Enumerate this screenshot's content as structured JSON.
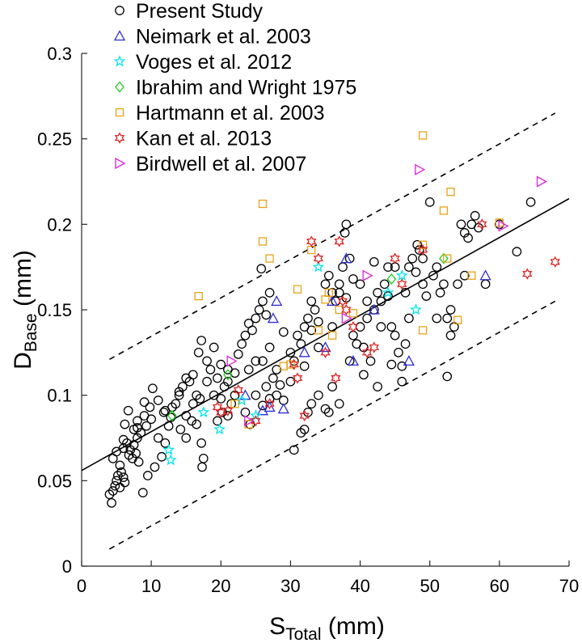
{
  "chart_data": {
    "type": "scatter",
    "xlabel": {
      "main": "S",
      "sub": "Total",
      "unit": " (mm)"
    },
    "ylabel": {
      "main": "D",
      "sub": "Base",
      "unit": " (mm)"
    },
    "xlim": [
      0,
      70
    ],
    "ylim": [
      0,
      0.3
    ],
    "xticks": [
      "0",
      "10",
      "20",
      "30",
      "40",
      "50",
      "60",
      "70"
    ],
    "yticks": [
      "0",
      "0.05",
      "0.1",
      "0.15",
      "0.2",
      "0.25",
      "0.3"
    ],
    "legend_position": "top-left",
    "grid": false,
    "fit_line": {
      "x": [
        0,
        70
      ],
      "y": [
        0.056,
        0.215
      ]
    },
    "bounds_upper": {
      "x": [
        4,
        68
      ],
      "y": [
        0.121,
        0.265
      ]
    },
    "bounds_lower": {
      "x": [
        4,
        68
      ],
      "y": [
        0.01,
        0.155
      ]
    },
    "series": [
      {
        "name": "Present Study",
        "marker": "circle",
        "color": "#000000",
        "points": [
          [
            4,
            0.042
          ],
          [
            4.3,
            0.037
          ],
          [
            4.5,
            0.044
          ],
          [
            4.8,
            0.047
          ],
          [
            5,
            0.05
          ],
          [
            5.2,
            0.053
          ],
          [
            5.5,
            0.046
          ],
          [
            5.7,
            0.055
          ],
          [
            6,
            0.052
          ],
          [
            6.2,
            0.049
          ],
          [
            4.5,
            0.063
          ],
          [
            5,
            0.067
          ],
          [
            5.5,
            0.059
          ],
          [
            6,
            0.069
          ],
          [
            6.5,
            0.072
          ],
          [
            6.8,
            0.065
          ],
          [
            7,
            0.068
          ],
          [
            7.3,
            0.063
          ],
          [
            7.5,
            0.071
          ],
          [
            7.8,
            0.066
          ],
          [
            8,
            0.075
          ],
          [
            8.2,
            0.061
          ],
          [
            6.2,
            0.083
          ],
          [
            6.7,
            0.091
          ],
          [
            7.5,
            0.08
          ],
          [
            8,
            0.085
          ],
          [
            8.5,
            0.078
          ],
          [
            9,
            0.088
          ],
          [
            9.3,
            0.082
          ],
          [
            9.8,
            0.093
          ],
          [
            10.2,
            0.104
          ],
          [
            8.8,
            0.043
          ],
          [
            9.5,
            0.053
          ],
          [
            10.5,
            0.058
          ],
          [
            11,
            0.075
          ],
          [
            11.5,
            0.064
          ],
          [
            12,
            0.072
          ],
          [
            12.5,
            0.082
          ],
          [
            11.8,
            0.09
          ],
          [
            12.8,
            0.087
          ],
          [
            13.5,
            0.095
          ],
          [
            14,
            0.1
          ],
          [
            14.5,
            0.105
          ],
          [
            15,
            0.11
          ],
          [
            15.5,
            0.108
          ],
          [
            16,
            0.095
          ],
          [
            16.5,
            0.1
          ],
          [
            17,
            0.098
          ],
          [
            14.2,
            0.08
          ],
          [
            15,
            0.075
          ],
          [
            15.8,
            0.085
          ],
          [
            16.5,
            0.083
          ],
          [
            17.2,
            0.072
          ],
          [
            17.5,
            0.063
          ],
          [
            17.3,
            0.058
          ],
          [
            16.8,
            0.125
          ],
          [
            17.2,
            0.132
          ],
          [
            18,
            0.12
          ],
          [
            18.5,
            0.115
          ],
          [
            19,
            0.128
          ],
          [
            19.5,
            0.11
          ],
          [
            20,
            0.098
          ],
          [
            20.5,
            0.105
          ],
          [
            21,
            0.115
          ],
          [
            19.5,
            0.085
          ],
          [
            20.2,
            0.09
          ],
          [
            21,
            0.088
          ],
          [
            21.5,
            0.095
          ],
          [
            22,
            0.1
          ],
          [
            22.5,
            0.124
          ],
          [
            23,
            0.13
          ],
          [
            23.5,
            0.135
          ],
          [
            24,
            0.142
          ],
          [
            24.5,
            0.138
          ],
          [
            25,
            0.145
          ],
          [
            25.5,
            0.15
          ],
          [
            26,
            0.155
          ],
          [
            26.5,
            0.147
          ],
          [
            27,
            0.16
          ],
          [
            25.8,
            0.174
          ],
          [
            23.5,
            0.09
          ],
          [
            24.2,
            0.083
          ],
          [
            25,
            0.1
          ],
          [
            26,
            0.094
          ],
          [
            26.5,
            0.105
          ],
          [
            27,
            0.098
          ],
          [
            27.5,
            0.11
          ],
          [
            28,
            0.1
          ],
          [
            28.5,
            0.106
          ],
          [
            29,
            0.097
          ],
          [
            30,
            0.125
          ],
          [
            30.5,
            0.12
          ],
          [
            31,
            0.135
          ],
          [
            31.5,
            0.13
          ],
          [
            32,
            0.14
          ],
          [
            32.5,
            0.145
          ],
          [
            33,
            0.138
          ],
          [
            33.5,
            0.15
          ],
          [
            34,
            0.143
          ],
          [
            30.5,
            0.068
          ],
          [
            31.5,
            0.078
          ],
          [
            32,
            0.08
          ],
          [
            32.5,
            0.09
          ],
          [
            33,
            0.095
          ],
          [
            34,
            0.1
          ],
          [
            35,
            0.092
          ],
          [
            35.5,
            0.09
          ],
          [
            36,
            0.105
          ],
          [
            37,
            0.095
          ],
          [
            35,
            0.165
          ],
          [
            35.5,
            0.17
          ],
          [
            36,
            0.16
          ],
          [
            36.5,
            0.155
          ],
          [
            37,
            0.165
          ],
          [
            37.5,
            0.175
          ],
          [
            38,
            0.2
          ],
          [
            38.5,
            0.18
          ],
          [
            37.8,
            0.195
          ],
          [
            39,
            0.135
          ],
          [
            39.5,
            0.13
          ],
          [
            40,
            0.14
          ],
          [
            40.5,
            0.128
          ],
          [
            41,
            0.145
          ],
          [
            41.5,
            0.12
          ],
          [
            42,
            0.15
          ],
          [
            42.5,
            0.16
          ],
          [
            43,
            0.155
          ],
          [
            43.5,
            0.165
          ],
          [
            44,
            0.158
          ],
          [
            44.5,
            0.14
          ],
          [
            45,
            0.135
          ],
          [
            45.5,
            0.125
          ],
          [
            46,
            0.108
          ],
          [
            46.5,
            0.13
          ],
          [
            47,
            0.175
          ],
          [
            47.5,
            0.18
          ],
          [
            48,
            0.172
          ],
          [
            48.5,
            0.185
          ],
          [
            49,
            0.165
          ],
          [
            49.5,
            0.158
          ],
          [
            50,
            0.213
          ],
          [
            50.5,
            0.17
          ],
          [
            51,
            0.175
          ],
          [
            51.5,
            0.16
          ],
          [
            52,
            0.165
          ],
          [
            52.5,
            0.145
          ],
          [
            53,
            0.15
          ],
          [
            53.5,
            0.14
          ],
          [
            54,
            0.165
          ],
          [
            54.5,
            0.2
          ],
          [
            55,
            0.195
          ],
          [
            55.5,
            0.192
          ],
          [
            56,
            0.2
          ],
          [
            56.5,
            0.205
          ],
          [
            57,
            0.198
          ],
          [
            58,
            0.165
          ],
          [
            52.5,
            0.111
          ],
          [
            62.5,
            0.184
          ],
          [
            64.5,
            0.213
          ],
          [
            60,
            0.2
          ],
          [
            46,
            0.117
          ],
          [
            47,
            0.145
          ],
          [
            44,
            0.175
          ],
          [
            42,
            0.178
          ],
          [
            40,
            0.165
          ],
          [
            38,
            0.157
          ],
          [
            36,
            0.14
          ],
          [
            34,
            0.128
          ],
          [
            32,
            0.117
          ],
          [
            30,
            0.108
          ],
          [
            28,
            0.115
          ],
          [
            26,
            0.12
          ],
          [
            24,
            0.115
          ],
          [
            22,
            0.113
          ],
          [
            20,
            0.118
          ],
          [
            18,
            0.108
          ],
          [
            16,
            0.112
          ],
          [
            14,
            0.102
          ],
          [
            12,
            0.091
          ],
          [
            10,
            0.086
          ],
          [
            8,
            0.081
          ],
          [
            6,
            0.074
          ],
          [
            9,
            0.096
          ],
          [
            11,
            0.097
          ],
          [
            13,
            0.093
          ],
          [
            15,
            0.088
          ],
          [
            19,
            0.1
          ],
          [
            21,
            0.108
          ],
          [
            25,
            0.12
          ],
          [
            27,
            0.128
          ],
          [
            29,
            0.137
          ],
          [
            33,
            0.155
          ],
          [
            37,
            0.16
          ],
          [
            39,
            0.168
          ],
          [
            41,
            0.155
          ],
          [
            43,
            0.14
          ],
          [
            45,
            0.175
          ],
          [
            49,
            0.18
          ],
          [
            51,
            0.145
          ],
          [
            53,
            0.135
          ],
          [
            55,
            0.17
          ],
          [
            38.5,
            0.12
          ],
          [
            40.5,
            0.112
          ],
          [
            42.5,
            0.105
          ],
          [
            44.5,
            0.118
          ],
          [
            46.5,
            0.16
          ],
          [
            48.2,
            0.188
          ]
        ]
      },
      {
        "name": "Neimark et al. 2003",
        "marker": "triangle",
        "color": "#2e2ed4",
        "points": [
          [
            26,
            0.091
          ],
          [
            27,
            0.093
          ],
          [
            28,
            0.155
          ],
          [
            29,
            0.092
          ],
          [
            32,
            0.125
          ],
          [
            35,
            0.128
          ],
          [
            36,
            0.155
          ],
          [
            38,
            0.18
          ],
          [
            39,
            0.12
          ],
          [
            42,
            0.15
          ],
          [
            47,
            0.12
          ],
          [
            58,
            0.17
          ],
          [
            27.5,
            0.145
          ],
          [
            23.5,
            0.1
          ]
        ]
      },
      {
        "name": "Voges et al. 2012",
        "marker": "star",
        "color": "#00e5ee",
        "points": [
          [
            12.5,
            0.068
          ],
          [
            12.8,
            0.062
          ],
          [
            17.5,
            0.09
          ],
          [
            19.8,
            0.08
          ],
          [
            23,
            0.097
          ],
          [
            25,
            0.088
          ],
          [
            34,
            0.175
          ],
          [
            46,
            0.17
          ],
          [
            48,
            0.15
          ],
          [
            44,
            0.16
          ]
        ]
      },
      {
        "name": "Ibrahim and Wright 1975",
        "marker": "diamond",
        "color": "#22cc22",
        "points": [
          [
            13,
            0.088
          ],
          [
            21,
            0.112
          ],
          [
            52,
            0.18
          ],
          [
            44.5,
            0.168
          ]
        ]
      },
      {
        "name": "Hartmann et al. 2003",
        "marker": "square",
        "color": "#e8a317",
        "points": [
          [
            16.8,
            0.158
          ],
          [
            26,
            0.212
          ],
          [
            26,
            0.19
          ],
          [
            27,
            0.18
          ],
          [
            22,
            0.095
          ],
          [
            24,
            0.083
          ],
          [
            29,
            0.117
          ],
          [
            30,
            0.118
          ],
          [
            31,
            0.162
          ],
          [
            33,
            0.185
          ],
          [
            35,
            0.156
          ],
          [
            35.5,
            0.16
          ],
          [
            36,
            0.135
          ],
          [
            37,
            0.15
          ],
          [
            39,
            0.148
          ],
          [
            49,
            0.252
          ],
          [
            49,
            0.188
          ],
          [
            49,
            0.138
          ],
          [
            52,
            0.208
          ],
          [
            53,
            0.219
          ],
          [
            54,
            0.144
          ],
          [
            52.5,
            0.18
          ],
          [
            56,
            0.17
          ],
          [
            60,
            0.201
          ],
          [
            34,
            0.138
          ]
        ]
      },
      {
        "name": "Kan et al. 2013",
        "marker": "hexagram",
        "color": "#dd2222",
        "points": [
          [
            19.5,
            0.093
          ],
          [
            20,
            0.09
          ],
          [
            21,
            0.091
          ],
          [
            22.5,
            0.103
          ],
          [
            25,
            0.085
          ],
          [
            27,
            0.095
          ],
          [
            31,
            0.11
          ],
          [
            32,
            0.088
          ],
          [
            33,
            0.19
          ],
          [
            34,
            0.18
          ],
          [
            35,
            0.125
          ],
          [
            37,
            0.19
          ],
          [
            37.5,
            0.155
          ],
          [
            38,
            0.15
          ],
          [
            39,
            0.14
          ],
          [
            41,
            0.125
          ],
          [
            42,
            0.128
          ],
          [
            45,
            0.18
          ],
          [
            46,
            0.165
          ],
          [
            49,
            0.185
          ],
          [
            57.5,
            0.2
          ],
          [
            64,
            0.171
          ],
          [
            68,
            0.178
          ],
          [
            36.5,
            0.11
          ],
          [
            30.5,
            0.118
          ]
        ]
      },
      {
        "name": "Birdwell et al. 2007",
        "marker": "triangle-right",
        "color": "#dd22dd",
        "points": [
          [
            48.5,
            0.232
          ],
          [
            66,
            0.225
          ],
          [
            60.5,
            0.199
          ],
          [
            41,
            0.17
          ],
          [
            21.5,
            0.12
          ],
          [
            24,
            0.085
          ],
          [
            38,
            0.145
          ]
        ]
      }
    ]
  }
}
